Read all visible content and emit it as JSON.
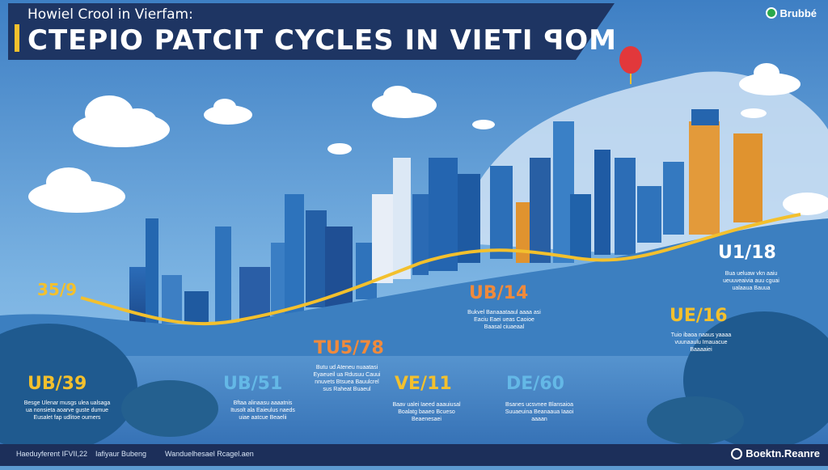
{
  "header": {
    "pre_title": "Howiel Crool in Vierfam:",
    "title": "CTEPIO PATCIT CYCLES IN VIETI ꟼOM",
    "brand": "Brubbé"
  },
  "colors": {
    "header_bg": "#1e3563",
    "accent": "#f3c02d",
    "sky": "#5d9ad0",
    "water": "#4a8ac8",
    "label_yellow": "#f3c02d",
    "label_blue": "#64b8e6",
    "label_white": "#ffffff",
    "label_orange": "#f08a3c"
  },
  "points": [
    {
      "label": "35/9",
      "color": "#f3c02d",
      "desc": ""
    },
    {
      "label": "UB/39",
      "color": "#f3c02d",
      "desc": "Besge Ulenar musgs ulea ualsaga ua nonsieta aoarve guste dumue Eusalet fap udlitoe oumers"
    },
    {
      "label": "UB/51",
      "color": "#64b8e6",
      "desc": "Bftaa alinaasu aaaatnis Itusolt ala Eaieulus naeds uiae aatcue Beaelii"
    },
    {
      "label": "TU5/78",
      "color": "#f08a3c",
      "desc": "Butu ud Ateneu nuaatasi Eyaeueil ua Rdusuu Cauui nnuvets Btsuea Bauulcrel sus Raheat Buaeul"
    },
    {
      "label": "VE/11",
      "color": "#f3c02d",
      "desc": "Baav ualei Iaeed aaauiusal Boalatg baaeo Bcueso Beaenesaei"
    },
    {
      "label": "UB/14",
      "color": "#f08a3c",
      "desc": "Bukvel Banaaataaul aaaa asi Eaciu Eaei ueas Caoioe Baasal ciuaeaal"
    },
    {
      "label": "DE/60",
      "color": "#64b8e6",
      "desc": "Bsanes ucsvnee Blansaioa Suuaeuina Beanaaua Iaaoi aaaan"
    },
    {
      "label": "UE/16",
      "color": "#f3c02d",
      "desc": "Tuio ibaoa naaus yaaaa vuunaaulu Imauacue Baaaaiei"
    },
    {
      "label": "U1/18",
      "color": "#ffffff",
      "desc": "Bua ueluaw vkn aaiu ueuuveaivia auu cguai ualaaua Bauua"
    }
  ],
  "footer": {
    "items": [
      "Haeduyferent IFVII,22",
      "Iafiyaur Bubeng",
      "Wanduelhesael Rcagel.aen"
    ],
    "brand": "Boektn.Reanre"
  }
}
